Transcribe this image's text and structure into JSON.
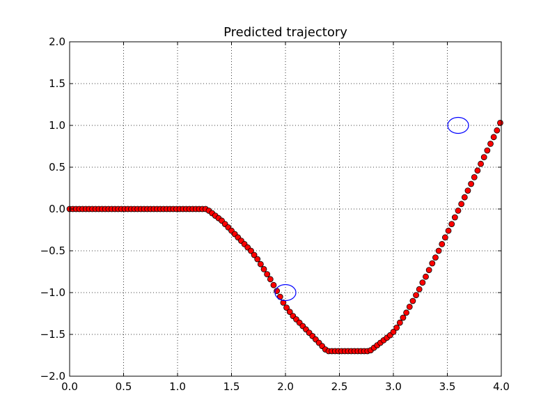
{
  "chart_data": {
    "type": "scatter",
    "title": "Predicted trajectory",
    "xlabel": "",
    "ylabel": "",
    "xlim": [
      0.0,
      4.0
    ],
    "ylim": [
      -2.0,
      2.0
    ],
    "x_ticks": [
      "0.0",
      "0.5",
      "1.0",
      "1.5",
      "2.0",
      "2.5",
      "3.0",
      "3.5",
      "4.0"
    ],
    "y_ticks": [
      "−2.0",
      "−1.5",
      "−1.0",
      "−0.5",
      "0.0",
      "0.5",
      "1.0",
      "1.5",
      "2.0"
    ],
    "grid": true,
    "grid_style": "dotted",
    "series": [
      {
        "marker": "circle",
        "color": "#ff0000",
        "edge_color": "#000000",
        "x": [
          0.0,
          0.03,
          0.06,
          0.09,
          0.12,
          0.15,
          0.18,
          0.21,
          0.24,
          0.27,
          0.3,
          0.33,
          0.36,
          0.39,
          0.42,
          0.45,
          0.48,
          0.51,
          0.54,
          0.57,
          0.6,
          0.63,
          0.66,
          0.69,
          0.72,
          0.75,
          0.78,
          0.81,
          0.84,
          0.87,
          0.9,
          0.93,
          0.96,
          0.99,
          1.02,
          1.05,
          1.08,
          1.11,
          1.14,
          1.17,
          1.2,
          1.23,
          1.26,
          1.29,
          1.32,
          1.35,
          1.38,
          1.41,
          1.44,
          1.47,
          1.5,
          1.53,
          1.56,
          1.59,
          1.62,
          1.65,
          1.68,
          1.71,
          1.74,
          1.77,
          1.8,
          1.83,
          1.86,
          1.89,
          1.92,
          1.95,
          1.98,
          2.01,
          2.04,
          2.07,
          2.1,
          2.13,
          2.16,
          2.19,
          2.22,
          2.25,
          2.28,
          2.31,
          2.34,
          2.37,
          2.4,
          2.43,
          2.46,
          2.49,
          2.52,
          2.55,
          2.58,
          2.61,
          2.64,
          2.67,
          2.7,
          2.73,
          2.76,
          2.79,
          2.82,
          2.85,
          2.88,
          2.91,
          2.94,
          2.97,
          3.0,
          3.03,
          3.06,
          3.09,
          3.12,
          3.15,
          3.18,
          3.21,
          3.24,
          3.27,
          3.3,
          3.33,
          3.36,
          3.39,
          3.42,
          3.45,
          3.48,
          3.51,
          3.54,
          3.57,
          3.6,
          3.63,
          3.66,
          3.69,
          3.72,
          3.75,
          3.78,
          3.81,
          3.84,
          3.87,
          3.9,
          3.93,
          3.96,
          3.99
        ],
        "y": [
          0,
          0,
          0,
          0,
          0,
          0,
          0,
          0,
          0,
          0,
          0,
          0,
          0,
          0,
          0,
          0,
          0,
          0,
          0,
          0,
          0,
          0,
          0,
          0,
          0,
          0,
          0,
          0,
          0,
          0,
          0,
          0,
          0,
          0,
          0,
          0,
          0,
          0,
          0,
          0,
          0,
          0,
          0,
          -0.02,
          -0.05,
          -0.08,
          -0.11,
          -0.14,
          -0.18,
          -0.22,
          -0.26,
          -0.3,
          -0.34,
          -0.38,
          -0.42,
          -0.46,
          -0.5,
          -0.55,
          -0.6,
          -0.66,
          -0.72,
          -0.78,
          -0.84,
          -0.91,
          -0.98,
          -1.05,
          -1.12,
          -1.18,
          -1.23,
          -1.28,
          -1.32,
          -1.36,
          -1.4,
          -1.44,
          -1.48,
          -1.52,
          -1.56,
          -1.6,
          -1.64,
          -1.68,
          -1.7,
          -1.7,
          -1.7,
          -1.7,
          -1.7,
          -1.7,
          -1.7,
          -1.7,
          -1.7,
          -1.7,
          -1.7,
          -1.7,
          -1.7,
          -1.69,
          -1.66,
          -1.63,
          -1.6,
          -1.57,
          -1.54,
          -1.51,
          -1.47,
          -1.42,
          -1.36,
          -1.3,
          -1.24,
          -1.17,
          -1.1,
          -1.03,
          -0.96,
          -0.88,
          -0.81,
          -0.73,
          -0.65,
          -0.58,
          -0.5,
          -0.42,
          -0.34,
          -0.26,
          -0.18,
          -0.1,
          -0.02,
          0.06,
          0.14,
          0.22,
          0.3,
          0.38,
          0.46,
          0.54,
          0.62,
          0.7,
          0.78,
          0.86,
          0.94,
          1.03
        ]
      }
    ],
    "annotations": [
      {
        "shape": "circle",
        "x": 2.0,
        "y": -1.0,
        "color": "#0000ff"
      },
      {
        "shape": "circle",
        "x": 3.6,
        "y": 1.0,
        "color": "#0000ff"
      }
    ]
  }
}
